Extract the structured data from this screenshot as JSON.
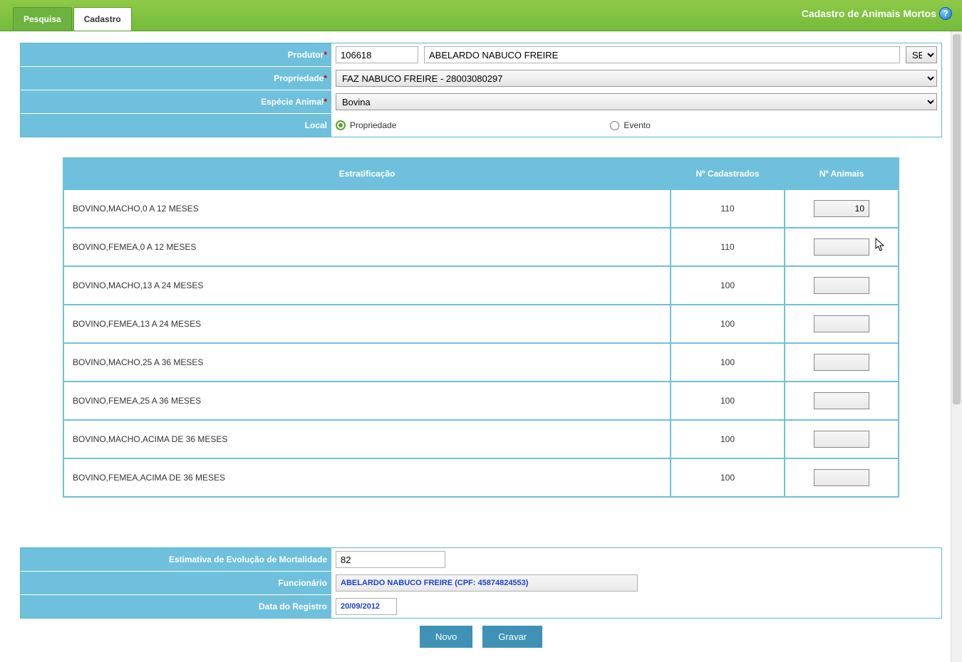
{
  "colors": {
    "header_green": "#7ac142",
    "panel_blue": "#6fc0dc",
    "button_blue": "#3f91b5",
    "link_blue": "#1a3fd4",
    "required_red": "#d40000"
  },
  "header": {
    "title": "Cadastro de Animais Mortos",
    "tabs": {
      "pesquisa": "Pesquisa",
      "cadastro": "Cadastro"
    }
  },
  "form": {
    "labels": {
      "produtor": "Produtor",
      "propriedade": "Propriedade",
      "especie": "Espécie Animal",
      "local": "Local"
    },
    "produtor_code": "106618",
    "produtor_name": "ABELARDO NABUCO FREIRE",
    "uf_selected": "SE",
    "propriedade_selected": "FAZ NABUCO FREIRE - 28003080297",
    "especie_selected": "Bovina",
    "local_options": {
      "propriedade": "Propriedade",
      "evento": "Evento"
    }
  },
  "strat": {
    "headers": {
      "col1": "Estratificação",
      "col2": "Nº Cadastrados",
      "col3": "Nº Animais"
    },
    "rows": [
      {
        "label": "BOVINO,MACHO,0 A 12 MESES",
        "cadastrados": "110",
        "animais": "10"
      },
      {
        "label": "BOVINO,FEMEA,0 A 12 MESES",
        "cadastrados": "110",
        "animais": ""
      },
      {
        "label": "BOVINO,MACHO,13 A 24 MESES",
        "cadastrados": "100",
        "animais": ""
      },
      {
        "label": "BOVINO,FEMEA,13 A 24 MESES",
        "cadastrados": "100",
        "animais": ""
      },
      {
        "label": "BOVINO,MACHO,25 A 36 MESES",
        "cadastrados": "100",
        "animais": ""
      },
      {
        "label": "BOVINO,FEMEA,25 A 36 MESES",
        "cadastrados": "100",
        "animais": ""
      },
      {
        "label": "BOVINO,MACHO,ACIMA DE 36 MESES",
        "cadastrados": "100",
        "animais": ""
      },
      {
        "label": "BOVINO,FEMEA,ACIMA DE 36 MESES",
        "cadastrados": "100",
        "animais": ""
      }
    ]
  },
  "bottom": {
    "labels": {
      "estimativa": "Estimativa de Evolução de Mortalidade",
      "funcionario": "Funcionário",
      "data": "Data do Registro"
    },
    "estimativa_value": "82",
    "funcionario_value": "ABELARDO NABUCO FREIRE (CPF: 45874824553)",
    "data_value": "20/09/2012"
  },
  "buttons": {
    "novo": "Novo",
    "gravar": "Gravar"
  }
}
